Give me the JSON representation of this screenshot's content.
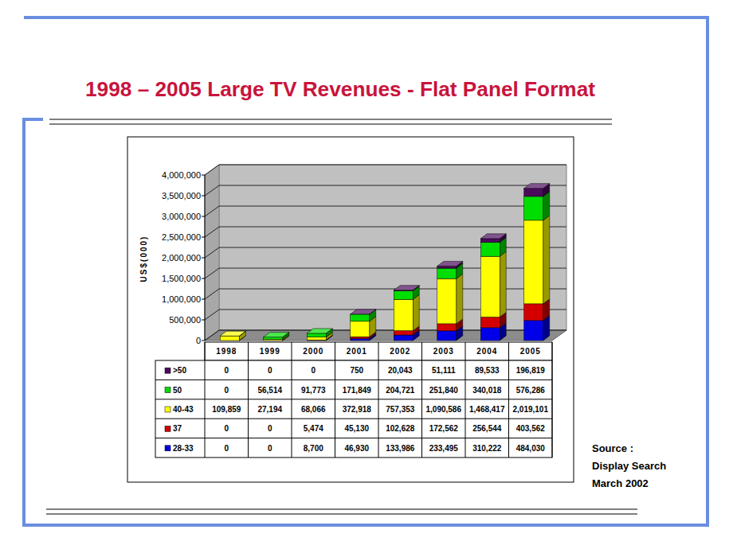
{
  "chart_data": {
    "type": "bar",
    "title": "1998 – 2005 Large TV Revenues - Flat Panel Format",
    "y_label": "US$(000)",
    "categories": [
      "1998",
      "1999",
      "2000",
      "2001",
      "2002",
      "2003",
      "2004",
      "2005"
    ],
    "stacked": true,
    "grid": true,
    "ylim": [
      0,
      4000000
    ],
    "yticks": [
      0,
      {
        "value": 500000,
        "label": "500,000"
      },
      {
        "value": 1000000,
        "label": "1,000,000"
      },
      {
        "value": 1500000,
        "label": "1,500,000"
      },
      {
        "value": 2000000,
        "label": "2,000,000"
      },
      {
        "value": 2500000,
        "label": "2,500,000"
      },
      {
        "value": 3000000,
        "label": "3,000,000"
      },
      {
        "value": 3500000,
        "label": "3,500,000"
      },
      {
        "value": 4000000,
        "label": "4,000,000"
      }
    ],
    "series": [
      {
        "name": ">50",
        "color": "#4b0a5c",
        "values": [
          0,
          0,
          0,
          750,
          20043,
          51111,
          89533,
          196819
        ],
        "value_labels": [
          "0",
          "0",
          "0",
          "750",
          "20,043",
          "51,111",
          "89,533",
          "196,819"
        ]
      },
      {
        "name": "50",
        "color": "#00dd00",
        "values": [
          0,
          56514,
          91773,
          171849,
          204721,
          251840,
          340018,
          576286
        ],
        "value_labels": [
          "0",
          "56,514",
          "91,773",
          "171,849",
          "204,721",
          "251,840",
          "340,018",
          "576,286"
        ]
      },
      {
        "name": "40-43",
        "color": "#ffff00",
        "values": [
          109859,
          27194,
          68066,
          372918,
          757353,
          1090586,
          1468417,
          2019101
        ],
        "value_labels": [
          "109,859",
          "27,194",
          "68,066",
          "372,918",
          "757,353",
          "1,090,586",
          "1,468,417",
          "2,019,101"
        ]
      },
      {
        "name": "37",
        "color": "#d40000",
        "values": [
          0,
          0,
          5474,
          45130,
          102628,
          172562,
          256544,
          403562
        ],
        "value_labels": [
          "0",
          "0",
          "5,474",
          "45,130",
          "102,628",
          "172,562",
          "256,544",
          "403,562"
        ]
      },
      {
        "name": "28-33",
        "color": "#0000e8",
        "values": [
          0,
          0,
          8700,
          46930,
          133986,
          233495,
          310222,
          484030
        ],
        "value_labels": [
          "0",
          "0",
          "8,700",
          "46,930",
          "133,986",
          "233,495",
          "310,222",
          "484,030"
        ]
      }
    ],
    "annotations": [
      "Source :",
      "Display Search",
      "March 2002"
    ]
  }
}
